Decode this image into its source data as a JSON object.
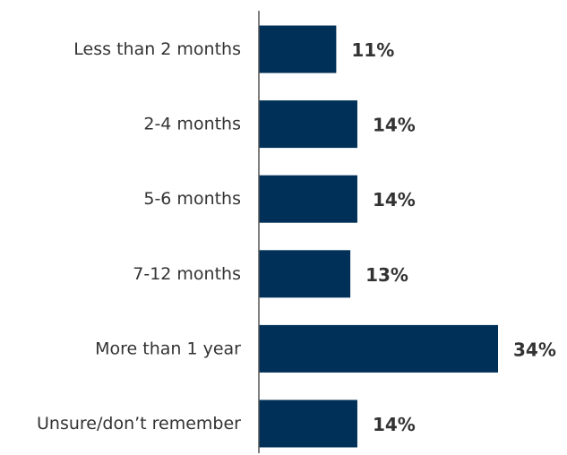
{
  "chart_data": {
    "type": "bar",
    "orientation": "horizontal",
    "categories": [
      "Less than 2 months",
      "2-4 months",
      "5-6 months",
      "7-12 months",
      "More than 1 year",
      "Unsure/don’t remember"
    ],
    "values": [
      11,
      14,
      14,
      13,
      34,
      14
    ],
    "value_labels": [
      "11%",
      "14%",
      "14%",
      "13%",
      "34%",
      "14%"
    ],
    "unit": "%",
    "title": "",
    "xlabel": "",
    "ylabel": "",
    "xlim": [
      0,
      34
    ],
    "grid": false,
    "legend": "none",
    "bar_color": "#003057",
    "axis_color": "#555555",
    "text_color": "#333333"
  }
}
